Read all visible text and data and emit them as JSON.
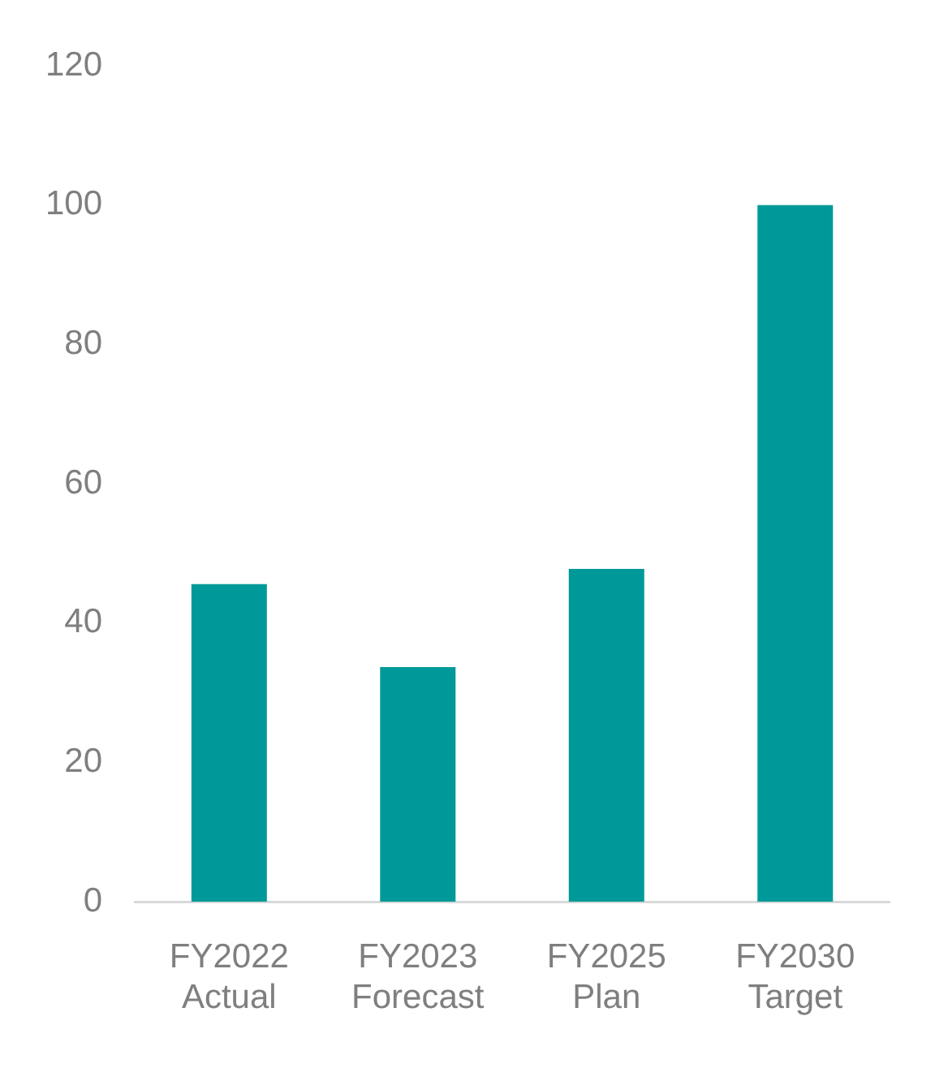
{
  "chart_data": {
    "type": "bar",
    "categories": [
      "FY2022\nActual",
      "FY2023\nForecast",
      "FY2025\nPlan",
      "FY2030\nTarget"
    ],
    "values": [
      45.6,
      33.7,
      47.8,
      100
    ],
    "color": "#009999",
    "ylim": [
      0,
      120
    ],
    "yticks": [
      0,
      20,
      40,
      60,
      80,
      100,
      120
    ],
    "grid": false
  }
}
